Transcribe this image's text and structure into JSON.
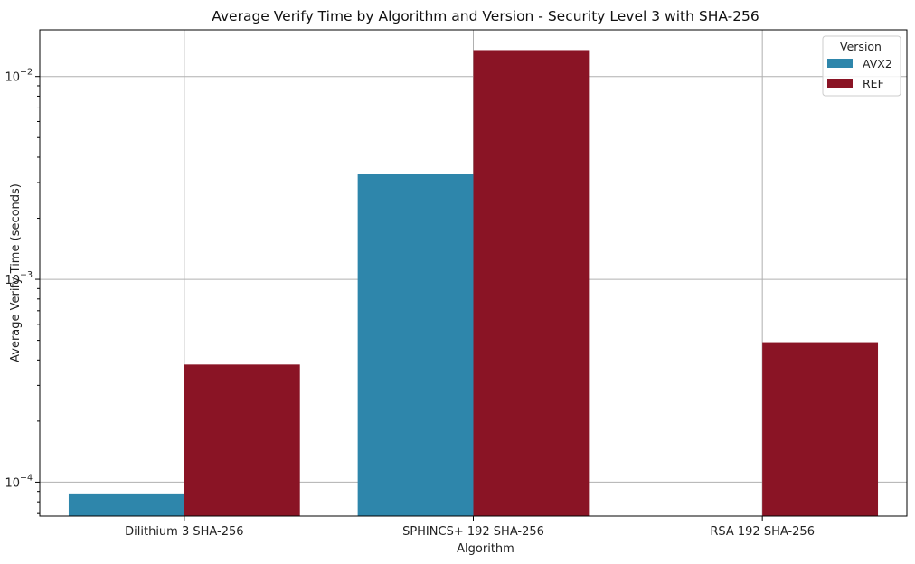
{
  "chart_data": {
    "type": "bar",
    "title": "Average Verify Time by Algorithm and Version - Security Level 3 with SHA-256",
    "xlabel": "Algorithm",
    "ylabel": "Average Verify Time (seconds)",
    "yscale": "log",
    "ylim": [
      6.8e-05,
      0.017
    ],
    "yticks": [
      {
        "value": 0.0001,
        "base": "10",
        "exp": "−4"
      },
      {
        "value": 0.001,
        "base": "10",
        "exp": "−3"
      },
      {
        "value": 0.01,
        "base": "10",
        "exp": "−2"
      }
    ],
    "grid": true,
    "categories": [
      "Dilithium 3 SHA-256",
      "SPHINCS+ 192 SHA-256",
      "RSA 192 SHA-256"
    ],
    "series": [
      {
        "name": "AVX2",
        "color": "#2e86ab",
        "values": [
          8.8e-05,
          0.0033,
          null
        ]
      },
      {
        "name": "REF",
        "color": "#8a1425",
        "values": [
          0.00038,
          0.0135,
          0.00049
        ]
      }
    ],
    "legend": {
      "title": "Version",
      "position": "top-right"
    }
  }
}
